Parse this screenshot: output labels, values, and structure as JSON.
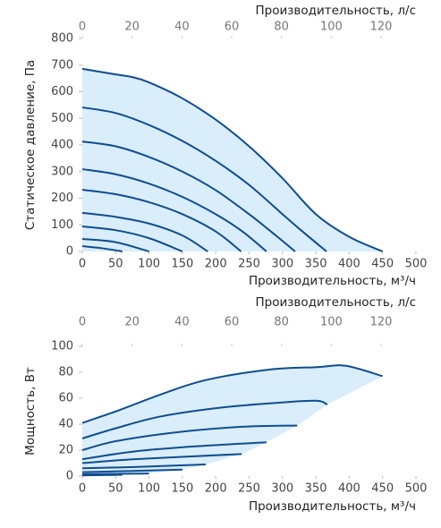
{
  "chart_data": [
    {
      "type": "line",
      "x2label": "Производительность, л/с",
      "xlabel": "Производительность, м³/ч",
      "ylabel": "Статическое давление, Па",
      "xlim": [
        0,
        500
      ],
      "xticks": [
        0,
        50,
        100,
        150,
        200,
        250,
        300,
        350,
        400,
        450,
        500
      ],
      "x2lim": [
        0,
        134
      ],
      "x2ticks": [
        0,
        20,
        40,
        60,
        80,
        100,
        120
      ],
      "ylim": [
        0,
        800
      ],
      "yticks": [
        0,
        100,
        200,
        300,
        400,
        500,
        600,
        700,
        800
      ],
      "fill": "#d9edfb",
      "series": [
        {
          "color": "#0f4d8f",
          "x": [
            0,
            50,
            75,
            100,
            150,
            200,
            250,
            300,
            350,
            400,
            450
          ],
          "values": [
            686,
            665,
            655,
            635,
            575,
            495,
            395,
            275,
            140,
            55,
            0
          ]
        },
        {
          "color": "#0f4d8f",
          "x": [
            0,
            50,
            100,
            150,
            200,
            250,
            300,
            330,
            366
          ],
          "values": [
            541,
            520,
            475,
            415,
            340,
            250,
            140,
            75,
            0
          ]
        },
        {
          "color": "#0f4d8f",
          "x": [
            0,
            50,
            100,
            150,
            200,
            250,
            290,
            319
          ],
          "values": [
            413,
            395,
            355,
            300,
            230,
            140,
            60,
            0
          ]
        },
        {
          "color": "#0f4d8f",
          "x": [
            0,
            50,
            100,
            150,
            200,
            240,
            276
          ],
          "values": [
            309,
            290,
            255,
            205,
            140,
            75,
            0
          ]
        },
        {
          "color": "#0f4d8f",
          "x": [
            0,
            50,
            100,
            150,
            200,
            238
          ],
          "values": [
            232,
            215,
            185,
            140,
            75,
            0
          ]
        },
        {
          "color": "#0f4d8f",
          "x": [
            0,
            50,
            100,
            150,
            188
          ],
          "values": [
            145,
            130,
            105,
            60,
            0
          ]
        },
        {
          "color": "#0f4d8f",
          "x": [
            0,
            50,
            100,
            150
          ],
          "values": [
            94,
            80,
            50,
            0
          ]
        },
        {
          "color": "#0f4d8f",
          "x": [
            0,
            50,
            100
          ],
          "values": [
            47,
            35,
            0
          ]
        },
        {
          "color": "#0f4d8f",
          "x": [
            0,
            30,
            60
          ],
          "values": [
            20,
            12,
            0
          ]
        }
      ]
    },
    {
      "type": "line",
      "x2label": "Производительность, л/с",
      "xlabel": "Производительность, м³/ч",
      "ylabel": "Мощность, Вт",
      "xlim": [
        0,
        500
      ],
      "xticks": [
        0,
        50,
        100,
        150,
        200,
        250,
        300,
        350,
        400,
        450,
        500
      ],
      "x2lim": [
        0,
        134
      ],
      "x2ticks": [
        0,
        20,
        40,
        60,
        80,
        100,
        120
      ],
      "ylim": [
        0,
        100
      ],
      "yticks": [
        0,
        20,
        40,
        60,
        80,
        100
      ],
      "fill": "#d9edfb",
      "series": [
        {
          "color": "#0f4d8f",
          "x": [
            0,
            51,
            118,
            185,
            279,
            353,
            395,
            450
          ],
          "values": [
            41,
            50,
            63,
            74,
            82,
            84,
            85,
            77
          ]
        },
        {
          "color": "#0f4d8f",
          "x": [
            0,
            51,
            118,
            212,
            306,
            353,
            367
          ],
          "values": [
            29,
            37,
            46,
            53,
            57,
            58,
            55
          ]
        },
        {
          "color": "#0f4d8f",
          "x": [
            0,
            51,
            145,
            239,
            322
          ],
          "values": [
            20,
            27,
            34,
            38,
            39
          ]
        },
        {
          "color": "#0f4d8f",
          "x": [
            0,
            78,
            172,
            276
          ],
          "values": [
            13,
            19,
            23,
            26
          ]
        },
        {
          "color": "#0f4d8f",
          "x": [
            0,
            78,
            239
          ],
          "values": [
            10,
            13,
            17
          ]
        },
        {
          "color": "#0f4d8f",
          "x": [
            0,
            78,
            185
          ],
          "values": [
            6,
            7,
            9
          ]
        },
        {
          "color": "#0f4d8f",
          "x": [
            0,
            150
          ],
          "values": [
            3,
            5
          ]
        },
        {
          "color": "#0f4d8f",
          "x": [
            0,
            100
          ],
          "values": [
            1.5,
            2
          ]
        },
        {
          "color": "#0f4d8f",
          "x": [
            0,
            60
          ],
          "values": [
            0.5,
            1
          ]
        }
      ]
    }
  ]
}
